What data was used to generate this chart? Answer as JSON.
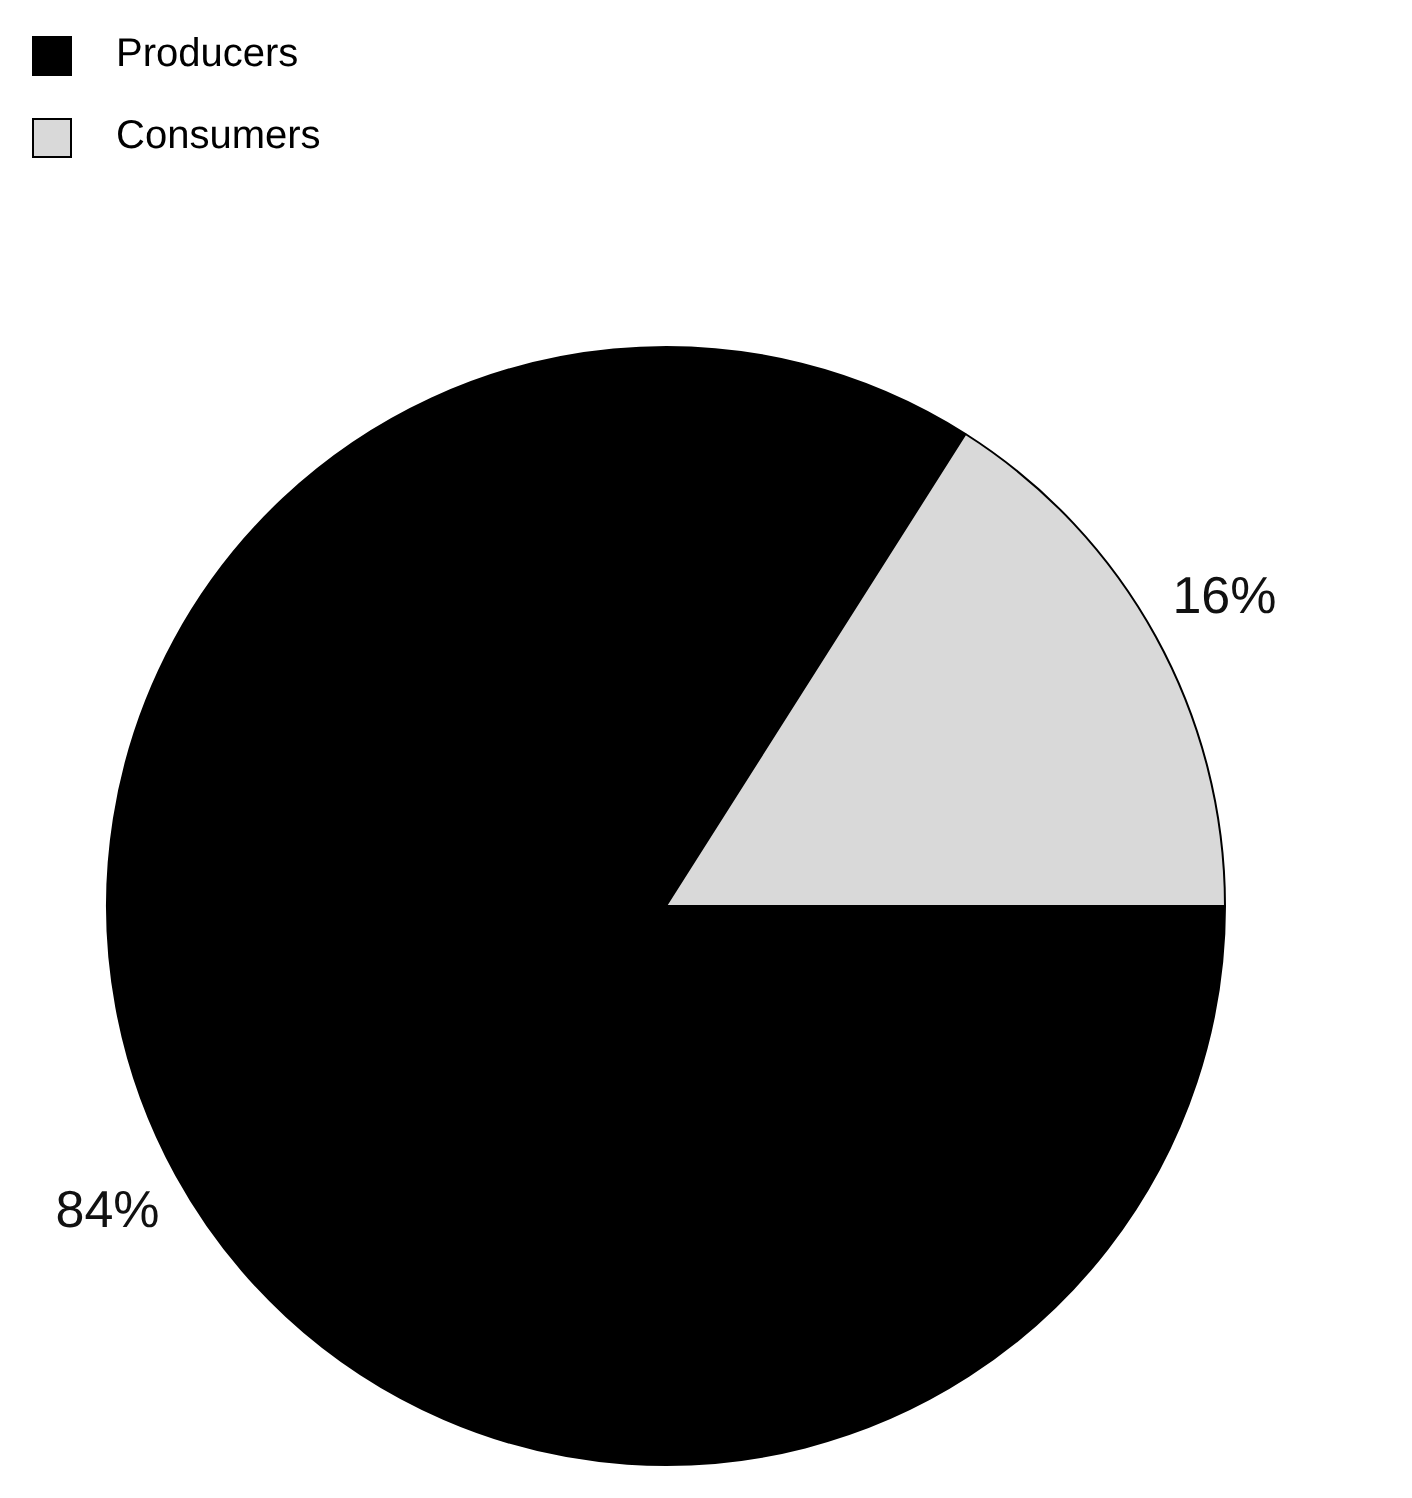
{
  "chart_data": {
    "type": "pie",
    "categories": [
      "Producers",
      "Consumers"
    ],
    "values": [
      84,
      16
    ],
    "value_labels": [
      "84%",
      "16%"
    ],
    "colors": [
      "#000000",
      "#d9d9d9"
    ],
    "legend": "top left"
  }
}
